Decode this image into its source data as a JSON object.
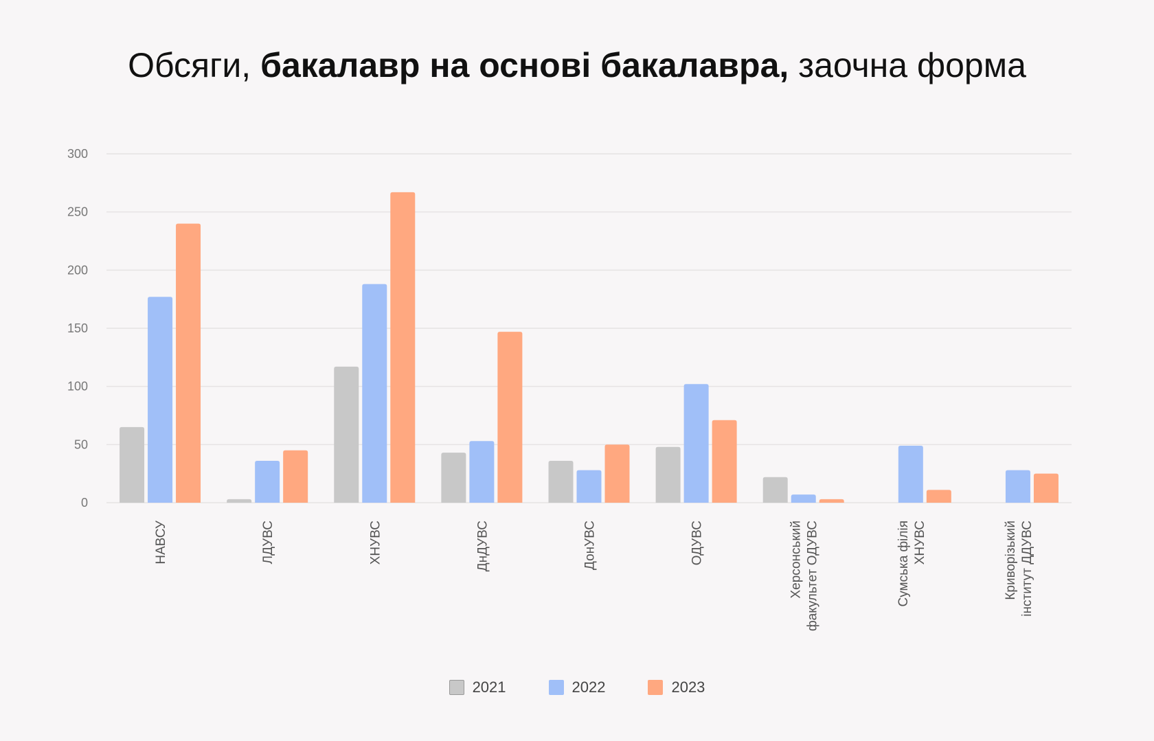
{
  "chart_data": {
    "type": "bar",
    "title_parts": [
      {
        "text": "Обсяги, ",
        "bold": false
      },
      {
        "text": "бакалавр на основі бакалавра,",
        "bold": true
      },
      {
        "text": " заочна форма",
        "bold": false
      }
    ],
    "categories": [
      [
        "НАВСУ"
      ],
      [
        "ЛДУВС"
      ],
      [
        "ХНУВС"
      ],
      [
        "ДнДУВС"
      ],
      [
        "ДонУВС"
      ],
      [
        "ОДУВС"
      ],
      [
        "Херсонський",
        "факультет ОДУВС"
      ],
      [
        "Сумська філія",
        "ХНУВС"
      ],
      [
        "Криворізький",
        "інститут ДДУВС"
      ]
    ],
    "series": [
      {
        "name": "2021",
        "color": "#c8c8c8",
        "values": [
          65,
          3,
          117,
          43,
          36,
          48,
          22,
          null,
          null
        ]
      },
      {
        "name": "2022",
        "color": "#a0bff8",
        "values": [
          177,
          36,
          188,
          53,
          28,
          102,
          7,
          49,
          28
        ]
      },
      {
        "name": "2023",
        "color": "#ffa880",
        "values": [
          240,
          45,
          267,
          147,
          50,
          71,
          3,
          11,
          25
        ]
      }
    ],
    "yticks": [
      "0",
      "50",
      "100",
      "150",
      "200",
      "250",
      "300"
    ],
    "ylim": [
      0,
      300
    ],
    "grid": true,
    "legend_position": "bottom"
  }
}
